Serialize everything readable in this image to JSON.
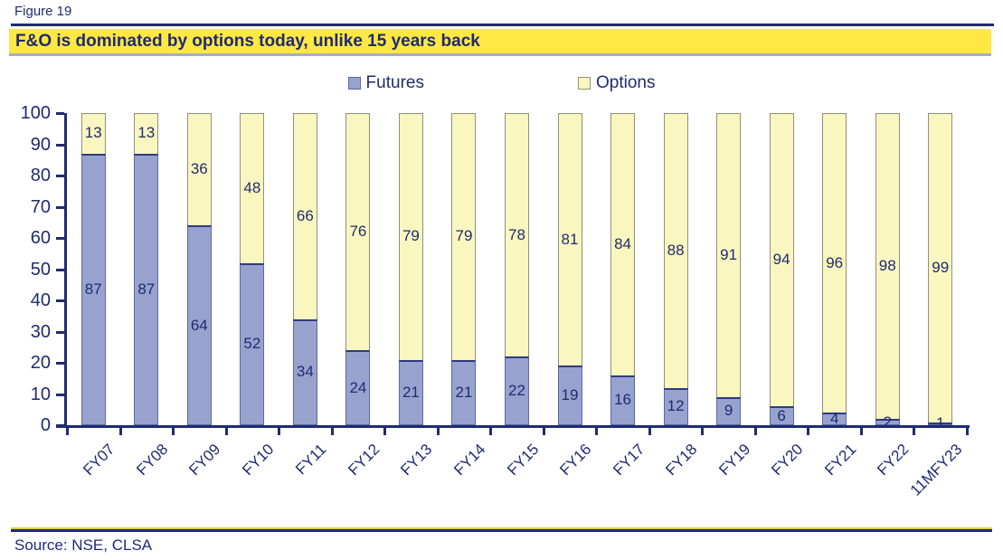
{
  "figure_label": "Figure 19",
  "title": "F&O is dominated by options today, unlike 15 years back",
  "source": "Source: NSE, CLSA",
  "legend": {
    "futures_label": "Futures",
    "options_label": "Options"
  },
  "colors": {
    "navy_text": "#202A72",
    "title_background": "#FFE843",
    "futures_fill": "#97A3CE",
    "futures_border": "#5A68A8",
    "options_fill": "#FAF6C0",
    "options_border": "#8F907B",
    "axis": "#1F2B70",
    "gray_rule": "#A8AEBE",
    "bottom_rule_yellow": "#E0CB42"
  },
  "chart_data": {
    "type": "bar",
    "stacked": true,
    "title": "F&O is dominated by options today, unlike 15 years back",
    "categories": [
      "FY07",
      "FY08",
      "FY09",
      "FY10",
      "FY11",
      "FY12",
      "FY13",
      "FY14",
      "FY15",
      "FY16",
      "FY17",
      "FY18",
      "FY19",
      "FY20",
      "FY21",
      "FY22",
      "11MFY23"
    ],
    "series": [
      {
        "name": "Futures",
        "values": [
          87,
          87,
          64,
          52,
          34,
          24,
          21,
          21,
          22,
          19,
          16,
          12,
          9,
          6,
          4,
          2,
          1
        ]
      },
      {
        "name": "Options",
        "values": [
          13,
          13,
          36,
          48,
          66,
          76,
          79,
          79,
          78,
          81,
          84,
          88,
          91,
          94,
          96,
          98,
          99
        ]
      }
    ],
    "ylim": [
      0,
      100
    ],
    "yticks": [
      0,
      10,
      20,
      30,
      40,
      50,
      60,
      70,
      80,
      90,
      100
    ],
    "xlabel": "",
    "ylabel": "",
    "grid": false,
    "legend_position": "top",
    "data_labels": "segment-midpoint"
  }
}
